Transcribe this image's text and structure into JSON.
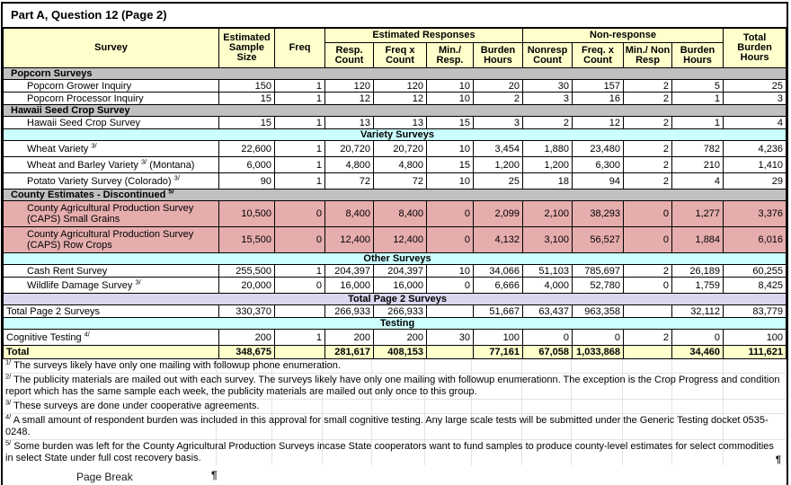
{
  "page": {
    "title": "Part A, Question 12 (Page 2)",
    "page_break_label": "Page Break",
    "pilcrow": "¶"
  },
  "table": {
    "headers": {
      "survey": "Survey",
      "sample_size": "Estimated\nSample\nSize",
      "freq": "Freq",
      "est_responses_group": "Estimated Responses",
      "nonresponse_group": "Non-response",
      "total_burden": "Total\nBurden\nHours",
      "sub": [
        "Resp.\nCount",
        "Freq x\nCount",
        "Min./ Resp.",
        "Burden\nHours",
        "Nonresp\nCount",
        "Freq. x\nCount",
        "Min./ Non\nResp",
        "Burden\nHours"
      ]
    },
    "rows": [
      {
        "type": "band",
        "style": "gray",
        "label": "Popcorn Surveys",
        "sup": ""
      },
      {
        "type": "data",
        "indent": true,
        "label": "Popcorn Grower Inquiry",
        "sup": "",
        "post": "",
        "cells": [
          "150",
          "1",
          "120",
          "120",
          "10",
          "20",
          "30",
          "157",
          "2",
          "5",
          "25"
        ]
      },
      {
        "type": "data",
        "indent": true,
        "label": "Popcorn Processor Inquiry",
        "sup": "",
        "post": "",
        "cells": [
          "15",
          "1",
          "12",
          "12",
          "10",
          "2",
          "3",
          "16",
          "2",
          "1",
          "3"
        ]
      },
      {
        "type": "band",
        "style": "gray",
        "label": "Hawaii Seed Crop Survey",
        "sup": ""
      },
      {
        "type": "data",
        "indent": true,
        "label": "Hawaii Seed Crop Survey",
        "sup": "",
        "post": "",
        "cells": [
          "15",
          "1",
          "13",
          "13",
          "15",
          "3",
          "2",
          "12",
          "2",
          "1",
          "4"
        ]
      },
      {
        "type": "band",
        "style": "cyan",
        "label": "Variety Surveys",
        "sup": ""
      },
      {
        "type": "data",
        "indent": true,
        "tall": true,
        "label": "Wheat Variety ",
        "sup": "3/",
        "post": "",
        "cells": [
          "22,600",
          "1",
          "20,720",
          "20,720",
          "10",
          "3,454",
          "1,880",
          "23,480",
          "2",
          "782",
          "4,236"
        ]
      },
      {
        "type": "data",
        "indent": true,
        "tall": true,
        "label": "Wheat and Barley Variety ",
        "sup": "3/",
        "post": " (Montana)",
        "cells": [
          "6,000",
          "1",
          "4,800",
          "4,800",
          "15",
          "1,200",
          "1,200",
          "6,300",
          "2",
          "210",
          "1,410"
        ]
      },
      {
        "type": "data",
        "indent": true,
        "tall": true,
        "label": "Potato Variety Survey (Colorado) ",
        "sup": "3/",
        "post": "",
        "cells": [
          "90",
          "1",
          "72",
          "72",
          "10",
          "25",
          "18",
          "94",
          "2",
          "4",
          "29"
        ]
      },
      {
        "type": "band",
        "style": "gray",
        "label": "County Estimates - Discontinued ",
        "sup": "5/"
      },
      {
        "type": "data",
        "indent": true,
        "pink": true,
        "label": "County Agricultural Production Survey (CAPS) Small Grains",
        "sup": "",
        "post": "",
        "cells": [
          "10,500",
          "0",
          "8,400",
          "8,400",
          "0",
          "2,099",
          "2,100",
          "38,293",
          "0",
          "1,277",
          "3,376"
        ]
      },
      {
        "type": "data",
        "indent": true,
        "pink": true,
        "label": "County Agricultural Production Survey (CAPS) Row Crops",
        "sup": "",
        "post": "",
        "cells": [
          "15,500",
          "0",
          "12,400",
          "12,400",
          "0",
          "4,132",
          "3,100",
          "56,527",
          "0",
          "1,884",
          "6,016"
        ]
      },
      {
        "type": "band",
        "style": "cyan",
        "label": "Other Surveys",
        "sup": ""
      },
      {
        "type": "data",
        "indent": true,
        "label": "Cash Rent Survey",
        "sup": "",
        "post": "",
        "cells": [
          "255,500",
          "1",
          "204,397",
          "204,397",
          "10",
          "34,066",
          "51,103",
          "785,697",
          "2",
          "26,189",
          "60,255"
        ]
      },
      {
        "type": "data",
        "indent": true,
        "tall": true,
        "label": "Wildlife Damage Survey ",
        "sup": "3/",
        "post": "",
        "cells": [
          "20,000",
          "0",
          "16,000",
          "16,000",
          "0",
          "6,666",
          "4,000",
          "52,780",
          "0",
          "1,759",
          "8,425"
        ]
      },
      {
        "type": "band",
        "style": "lavender",
        "label": "Total Page 2 Surveys",
        "sup": ""
      },
      {
        "type": "data",
        "indent": false,
        "label": "Total Page 2 Surveys",
        "sup": "",
        "post": "",
        "cells": [
          "330,370",
          "",
          "266,933",
          "266,933",
          "",
          "51,667",
          "63,437",
          "963,358",
          "",
          "32,112",
          "83,779"
        ]
      },
      {
        "type": "band",
        "style": "cyan",
        "label": "Testing",
        "sup": ""
      },
      {
        "type": "data",
        "indent": false,
        "tall": true,
        "label": "Cognitive Testing ",
        "sup": "4/",
        "post": "",
        "cells": [
          "200",
          "1",
          "200",
          "200",
          "30",
          "100",
          "0",
          "0",
          "2",
          "0",
          "100"
        ]
      },
      {
        "type": "data",
        "indent": false,
        "grand": true,
        "label": "Total",
        "sup": "",
        "post": "",
        "cells": [
          "348,675",
          "",
          "281,617",
          "408,153",
          "",
          "77,161",
          "67,058",
          "1,033,868",
          "",
          "34,460",
          "111,621"
        ]
      }
    ]
  },
  "footnotes": [
    {
      "marker": "1/",
      "text": "The surveys likely have only one mailing with followup phone enumeration."
    },
    {
      "marker": "2/",
      "text": "The publicity materials are mailed out with each survey.  The surveys likely have only one mailing with followup enumerationn.  The exception is the Crop Progress and condition report which has the same sample each week, the publicity materials are mailed out only once to this group."
    },
    {
      "marker": "3/",
      "text": "These surveys are done under cooperative agreements."
    },
    {
      "marker": "4/",
      "text": "A small amount of respondent burden was included in this approval for small cognitive testing.  Any large scale tests will be submitted under the Generic Testing docket 0535-0248."
    },
    {
      "marker": "5/",
      "text": "Some burden was left for the County Agricultural Production Surveys incase State cooperators want to fund samples to produce county-level estimates for select commodities in select State under full cost recovery basis."
    }
  ]
}
